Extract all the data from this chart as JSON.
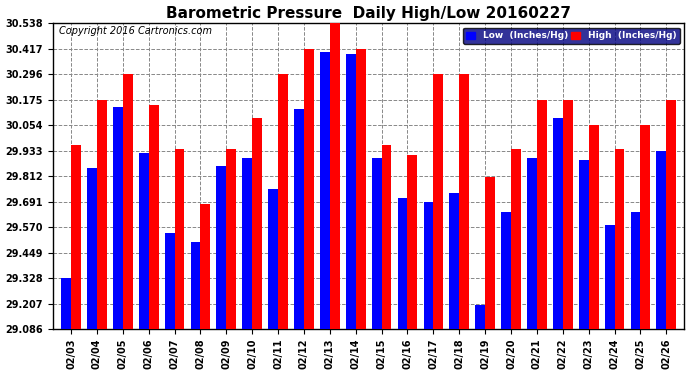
{
  "title": "Barometric Pressure  Daily High/Low 20160227",
  "copyright": "Copyright 2016 Cartronics.com",
  "legend_low": "Low  (Inches/Hg)",
  "legend_high": "High  (Inches/Hg)",
  "dates": [
    "02/03",
    "02/04",
    "02/05",
    "02/06",
    "02/07",
    "02/08",
    "02/09",
    "02/10",
    "02/11",
    "02/12",
    "02/13",
    "02/14",
    "02/15",
    "02/16",
    "02/17",
    "02/18",
    "02/19",
    "02/20",
    "02/21",
    "02/22",
    "02/23",
    "02/24",
    "02/25",
    "02/26"
  ],
  "low_values": [
    29.33,
    29.85,
    30.14,
    29.92,
    29.54,
    29.5,
    29.86,
    29.9,
    29.75,
    30.13,
    30.4,
    30.39,
    29.9,
    29.71,
    29.69,
    29.73,
    29.2,
    29.64,
    29.9,
    30.09,
    29.89,
    29.58,
    29.64,
    29.93
  ],
  "high_values": [
    29.96,
    30.175,
    30.296,
    30.15,
    29.94,
    29.68,
    29.94,
    30.09,
    30.296,
    30.417,
    30.538,
    30.417,
    29.96,
    29.91,
    30.296,
    30.296,
    29.81,
    29.94,
    30.175,
    30.175,
    30.054,
    29.94,
    30.054,
    30.175
  ],
  "ylim_min": 29.086,
  "ylim_max": 30.538,
  "yticks": [
    29.086,
    29.207,
    29.328,
    29.449,
    29.57,
    29.691,
    29.812,
    29.933,
    30.054,
    30.175,
    30.296,
    30.417,
    30.538
  ],
  "low_color": "#0000ff",
  "high_color": "#ff0000",
  "bg_color": "#ffffff",
  "grid_color": "#888888",
  "title_fontsize": 11,
  "copyright_fontsize": 7,
  "tick_fontsize": 7,
  "bar_width": 0.38
}
